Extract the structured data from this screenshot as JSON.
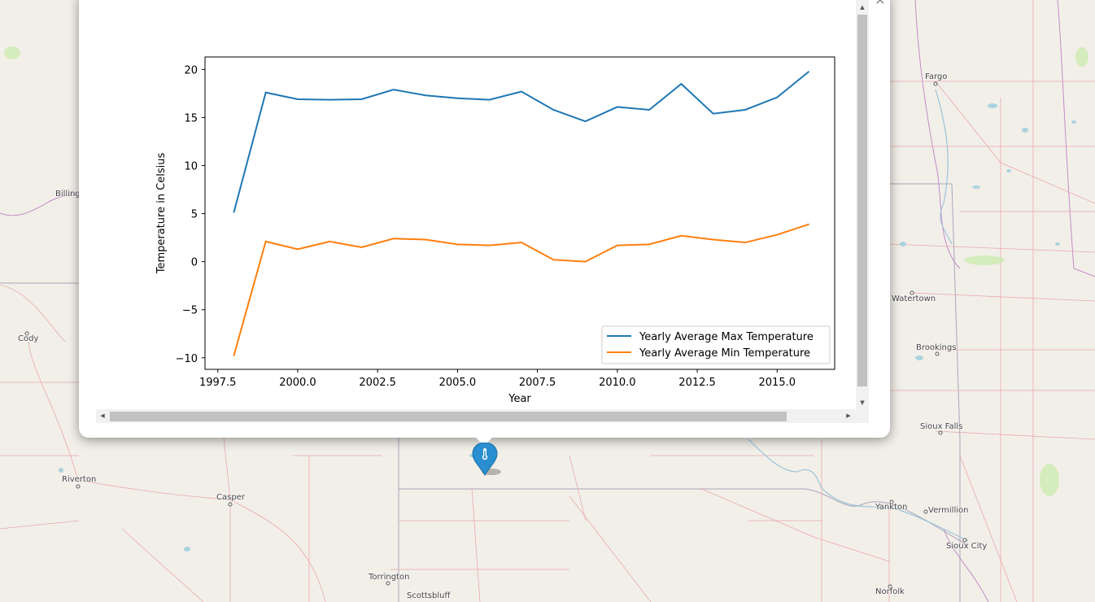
{
  "map": {
    "cities": [
      {
        "name": "Fargo"
      },
      {
        "name": "Billing"
      },
      {
        "name": "Cody"
      },
      {
        "name": "Watertown"
      },
      {
        "name": "Brookings"
      },
      {
        "name": "Sioux Falls"
      },
      {
        "name": "Riverton"
      },
      {
        "name": "Casper"
      },
      {
        "name": "Yankton"
      },
      {
        "name": "Vermillion"
      },
      {
        "name": "Sioux City"
      },
      {
        "name": "Torrington"
      },
      {
        "name": "Scottsbluff"
      },
      {
        "name": "Norfolk"
      }
    ],
    "marker_icon": "thermometer-icon",
    "marker_color": "#2a8fd0"
  },
  "popup": {
    "close_label": "×"
  },
  "chart_data": {
    "type": "line",
    "title": "",
    "xlabel": "Year",
    "ylabel": "Temperature in Celsius",
    "xlim": [
      1997.1,
      2016.8
    ],
    "ylim": [
      -11.2,
      21.3
    ],
    "x_ticks": [
      "1997.5",
      "2000.0",
      "2002.5",
      "2005.0",
      "2007.5",
      "2010.0",
      "2012.5",
      "2015.0"
    ],
    "y_ticks": [
      "20",
      "15",
      "10",
      "5",
      "0",
      "−5",
      "−10"
    ],
    "x": [
      1998,
      1999,
      2000,
      2001,
      2002,
      2003,
      2004,
      2005,
      2006,
      2007,
      2008,
      2009,
      2010,
      2011,
      2012,
      2013,
      2014,
      2015,
      2016
    ],
    "series": [
      {
        "name": "Yearly Average Max Temperature",
        "color": "#1f77b4",
        "values": [
          5.1,
          17.6,
          16.9,
          16.85,
          16.9,
          17.9,
          17.3,
          17.0,
          16.85,
          17.7,
          15.8,
          14.6,
          16.1,
          15.8,
          18.5,
          15.4,
          15.8,
          17.1,
          19.8
        ]
      },
      {
        "name": "Yearly Average Min Temperature",
        "color": "#ff7f0e",
        "values": [
          -9.8,
          2.1,
          1.3,
          2.1,
          1.5,
          2.4,
          2.3,
          1.8,
          1.7,
          2.0,
          0.2,
          0.0,
          1.7,
          1.8,
          2.7,
          2.3,
          2.0,
          2.8,
          3.9
        ]
      }
    ],
    "legend_position": "lower-right",
    "grid": false
  }
}
